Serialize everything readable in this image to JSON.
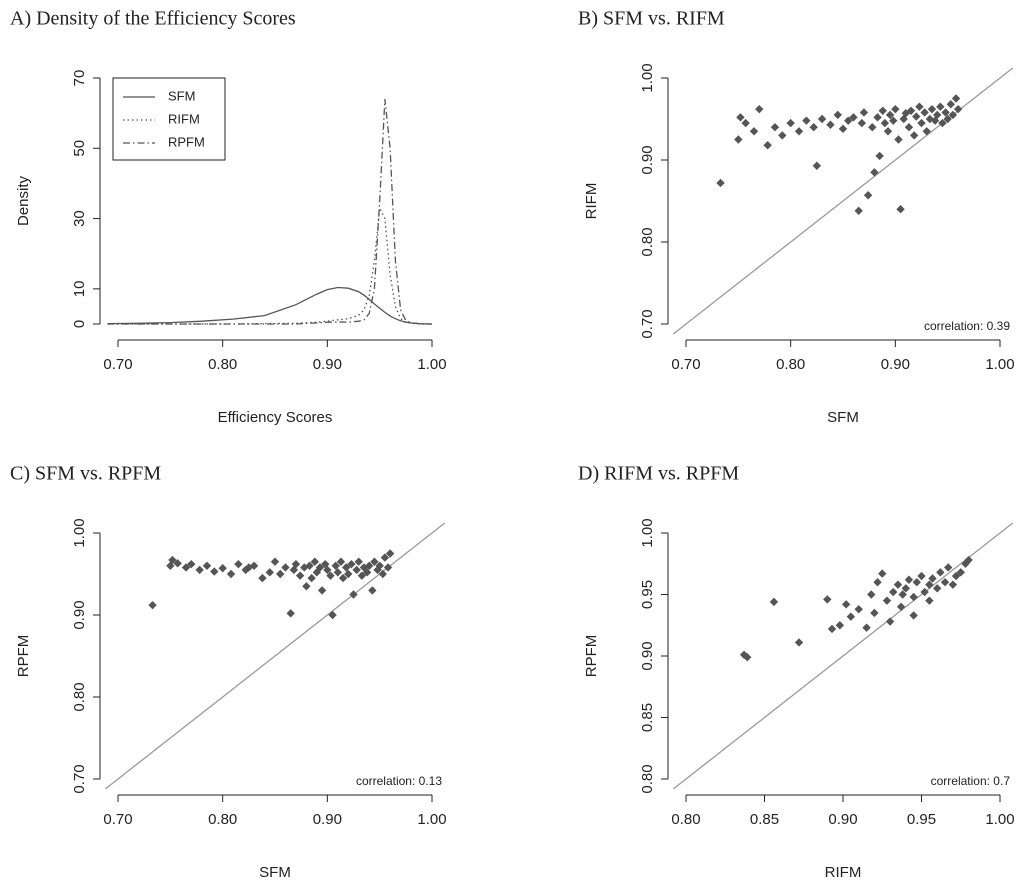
{
  "chart_data": [
    {
      "type": "line",
      "title": "A) Density of the Efficiency Scores",
      "x_label": "Efficiency Scores",
      "y_label": "Density",
      "x": [
        0.69,
        0.72,
        0.75,
        0.78,
        0.81,
        0.84,
        0.87,
        0.89,
        0.9,
        0.91,
        0.92,
        0.93,
        0.935,
        0.94,
        0.945,
        0.95,
        0.955,
        0.96,
        0.965,
        0.97,
        0.975,
        0.98,
        0.99,
        1.0
      ],
      "series": [
        {
          "name": "SFM",
          "color": "#555555",
          "dash": "solid",
          "values": [
            0.1,
            0.2,
            0.4,
            0.8,
            1.4,
            2.4,
            5.5,
            8.5,
            9.8,
            10.4,
            10.2,
            9.2,
            8.2,
            7.0,
            5.7,
            4.5,
            3.3,
            2.3,
            1.5,
            0.9,
            0.5,
            0.3,
            0.05,
            0
          ]
        },
        {
          "name": "RIFM",
          "color": "#555555",
          "dash": "dotted",
          "values": [
            0,
            0,
            0,
            0,
            0,
            0.1,
            0.2,
            0.5,
            0.8,
            1.2,
            1.5,
            2.5,
            4,
            8,
            18,
            33,
            30,
            14,
            5,
            1.5,
            0.5,
            0.2,
            0,
            0
          ]
        },
        {
          "name": "RPFM",
          "color": "#555555",
          "dash": "dotdash",
          "values": [
            0,
            0,
            0,
            0,
            0,
            0,
            0,
            0.3,
            0.5,
            0.6,
            0.5,
            0.8,
            1.2,
            3,
            10,
            35,
            64,
            50,
            18,
            4,
            1,
            0.3,
            0,
            0
          ]
        }
      ],
      "xlim": [
        0.7,
        1.0
      ],
      "xticks": [
        {
          "value": 0.7,
          "label": "0.70"
        },
        {
          "value": 0.8,
          "label": "0.80"
        },
        {
          "value": 0.9,
          "label": "0.90"
        },
        {
          "value": 1.0,
          "label": "1.00"
        }
      ],
      "ylim": [
        0,
        70
      ],
      "yticks": [
        0,
        10,
        30,
        50,
        70
      ],
      "legend": "topleft"
    },
    {
      "type": "scatter",
      "title": "B) SFM vs. RIFM",
      "x_label": "SFM",
      "y_label": "RIFM",
      "annotation": "correlation: 0.39",
      "color": "#555555",
      "x": [
        0.733,
        0.75,
        0.752,
        0.757,
        0.765,
        0.77,
        0.778,
        0.785,
        0.792,
        0.8,
        0.808,
        0.815,
        0.822,
        0.825,
        0.83,
        0.838,
        0.845,
        0.85,
        0.855,
        0.86,
        0.865,
        0.868,
        0.87,
        0.874,
        0.878,
        0.88,
        0.883,
        0.885,
        0.888,
        0.89,
        0.893,
        0.895,
        0.898,
        0.9,
        0.903,
        0.905,
        0.908,
        0.91,
        0.913,
        0.915,
        0.918,
        0.92,
        0.923,
        0.925,
        0.928,
        0.93,
        0.933,
        0.935,
        0.938,
        0.94,
        0.943,
        0.945,
        0.948,
        0.95,
        0.953,
        0.955,
        0.958,
        0.96
      ],
      "values": [
        0.872,
        0.925,
        0.952,
        0.945,
        0.935,
        0.962,
        0.918,
        0.94,
        0.93,
        0.945,
        0.935,
        0.948,
        0.94,
        0.893,
        0.95,
        0.943,
        0.955,
        0.938,
        0.948,
        0.952,
        0.838,
        0.945,
        0.958,
        0.857,
        0.94,
        0.885,
        0.952,
        0.905,
        0.96,
        0.945,
        0.935,
        0.955,
        0.948,
        0.962,
        0.925,
        0.84,
        0.95,
        0.957,
        0.94,
        0.96,
        0.93,
        0.953,
        0.965,
        0.945,
        0.958,
        0.935,
        0.95,
        0.962,
        0.948,
        0.955,
        0.965,
        0.945,
        0.958,
        0.95,
        0.968,
        0.955,
        0.975,
        0.962
      ],
      "xlim": [
        0.7,
        1.0
      ],
      "xticks": [
        {
          "value": 0.7,
          "label": "0.70"
        },
        {
          "value": 0.8,
          "label": "0.80"
        },
        {
          "value": 0.9,
          "label": "0.90"
        },
        {
          "value": 1.0,
          "label": "1.00"
        }
      ],
      "ylim": [
        0.7,
        1.0
      ],
      "yticks": [
        {
          "value": 0.7,
          "label": "0.70"
        },
        {
          "value": 0.8,
          "label": "0.80"
        },
        {
          "value": 0.9,
          "label": "0.90"
        },
        {
          "value": 1.0,
          "label": "1.00"
        }
      ]
    },
    {
      "type": "scatter",
      "title": "C) SFM vs. RPFM",
      "x_label": "SFM",
      "y_label": "RPFM",
      "annotation": "correlation: 0.13",
      "color": "#555555",
      "x": [
        0.733,
        0.75,
        0.752,
        0.757,
        0.765,
        0.77,
        0.778,
        0.785,
        0.792,
        0.8,
        0.808,
        0.815,
        0.822,
        0.825,
        0.83,
        0.838,
        0.845,
        0.85,
        0.855,
        0.86,
        0.865,
        0.868,
        0.87,
        0.874,
        0.878,
        0.88,
        0.883,
        0.885,
        0.888,
        0.89,
        0.893,
        0.895,
        0.898,
        0.9,
        0.903,
        0.905,
        0.908,
        0.91,
        0.913,
        0.915,
        0.918,
        0.92,
        0.923,
        0.925,
        0.928,
        0.93,
        0.933,
        0.935,
        0.938,
        0.94,
        0.943,
        0.945,
        0.948,
        0.95,
        0.953,
        0.955,
        0.958,
        0.96
      ],
      "values": [
        0.912,
        0.96,
        0.967,
        0.963,
        0.958,
        0.962,
        0.955,
        0.96,
        0.953,
        0.957,
        0.95,
        0.962,
        0.955,
        0.958,
        0.96,
        0.945,
        0.952,
        0.965,
        0.95,
        0.958,
        0.902,
        0.955,
        0.962,
        0.948,
        0.958,
        0.935,
        0.96,
        0.945,
        0.965,
        0.952,
        0.958,
        0.93,
        0.962,
        0.955,
        0.948,
        0.9,
        0.96,
        0.952,
        0.965,
        0.945,
        0.958,
        0.95,
        0.962,
        0.925,
        0.955,
        0.965,
        0.948,
        0.958,
        0.952,
        0.96,
        0.93,
        0.965,
        0.955,
        0.96,
        0.95,
        0.97,
        0.958,
        0.975
      ],
      "xlim": [
        0.7,
        1.0
      ],
      "xticks": [
        {
          "value": 0.7,
          "label": "0.70"
        },
        {
          "value": 0.8,
          "label": "0.80"
        },
        {
          "value": 0.9,
          "label": "0.90"
        },
        {
          "value": 1.0,
          "label": "1.00"
        }
      ],
      "ylim": [
        0.7,
        1.0
      ],
      "yticks": [
        {
          "value": 0.7,
          "label": "0.70"
        },
        {
          "value": 0.8,
          "label": "0.80"
        },
        {
          "value": 0.9,
          "label": "0.90"
        },
        {
          "value": 1.0,
          "label": "1.00"
        }
      ]
    },
    {
      "type": "scatter",
      "title": "D) RIFM vs. RPFM",
      "x_label": "RIFM",
      "y_label": "RPFM",
      "annotation": "correlation: 0.7",
      "color": "#555555",
      "x": [
        0.837,
        0.839,
        0.856,
        0.872,
        0.89,
        0.893,
        0.898,
        0.902,
        0.905,
        0.91,
        0.915,
        0.918,
        0.92,
        0.922,
        0.925,
        0.928,
        0.93,
        0.932,
        0.935,
        0.937,
        0.94,
        0.942,
        0.945,
        0.947,
        0.95,
        0.952,
        0.955,
        0.957,
        0.96,
        0.962,
        0.965,
        0.967,
        0.97,
        0.972,
        0.975,
        0.978,
        0.98,
        0.945,
        0.938,
        0.955
      ],
      "values": [
        0.901,
        0.899,
        0.944,
        0.911,
        0.946,
        0.922,
        0.925,
        0.942,
        0.932,
        0.938,
        0.923,
        0.95,
        0.935,
        0.96,
        0.967,
        0.945,
        0.928,
        0.952,
        0.958,
        0.94,
        0.955,
        0.962,
        0.948,
        0.96,
        0.965,
        0.952,
        0.958,
        0.963,
        0.955,
        0.968,
        0.96,
        0.972,
        0.958,
        0.965,
        0.968,
        0.975,
        0.978,
        0.933,
        0.95,
        0.945
      ],
      "xlim": [
        0.8,
        1.0
      ],
      "xticks": [
        {
          "value": 0.8,
          "label": "0.80"
        },
        {
          "value": 0.85,
          "label": "0.85"
        },
        {
          "value": 0.9,
          "label": "0.90"
        },
        {
          "value": 0.95,
          "label": "0.95"
        },
        {
          "value": 1.0,
          "label": "1.00"
        }
      ],
      "ylim": [
        0.8,
        1.0
      ],
      "yticks": [
        {
          "value": 0.8,
          "label": "0.80"
        },
        {
          "value": 0.85,
          "label": "0.85"
        },
        {
          "value": 0.9,
          "label": "0.90"
        },
        {
          "value": 0.95,
          "label": "0.95"
        },
        {
          "value": 1.0,
          "label": "1.00"
        }
      ]
    }
  ]
}
